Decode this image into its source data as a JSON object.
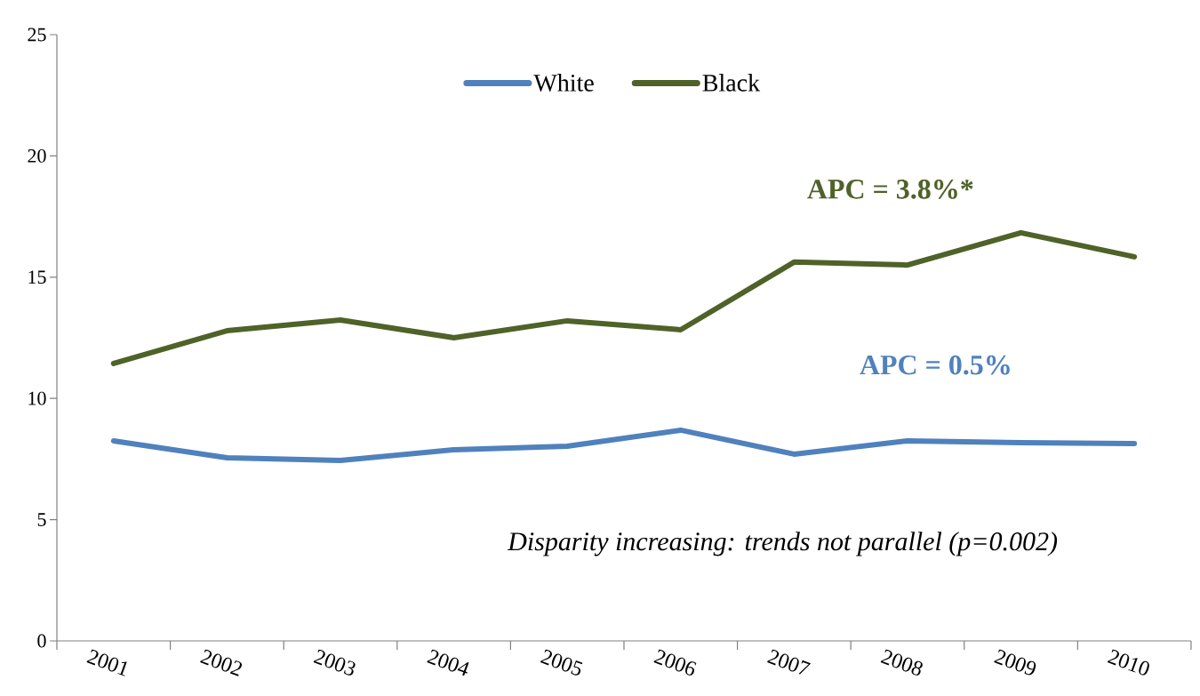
{
  "chart_data": {
    "type": "line",
    "categories": [
      "2001",
      "2002",
      "2003",
      "2004",
      "2005",
      "2006",
      "2007",
      "2008",
      "2009",
      "2010"
    ],
    "series": [
      {
        "name": "White",
        "color": "#4f81bd",
        "values": [
          8.25,
          7.55,
          7.44,
          7.88,
          8.03,
          8.69,
          7.7,
          8.25,
          8.17,
          8.14
        ]
      },
      {
        "name": "Black",
        "color": "#4f6228",
        "values": [
          11.44,
          12.79,
          13.23,
          12.5,
          13.2,
          12.83,
          15.62,
          15.5,
          16.83,
          15.84
        ]
      }
    ],
    "ylim": [
      0,
      25
    ],
    "yticks": [
      0,
      5,
      10,
      15,
      20,
      25
    ],
    "annotations": [
      "APC = 0.5%",
      "APC = 3.8%*",
      "Disparity increasing: trends not parallel (p=0.002)"
    ],
    "legend": "top",
    "grid": false,
    "marker": "none",
    "line_style": "solid"
  }
}
